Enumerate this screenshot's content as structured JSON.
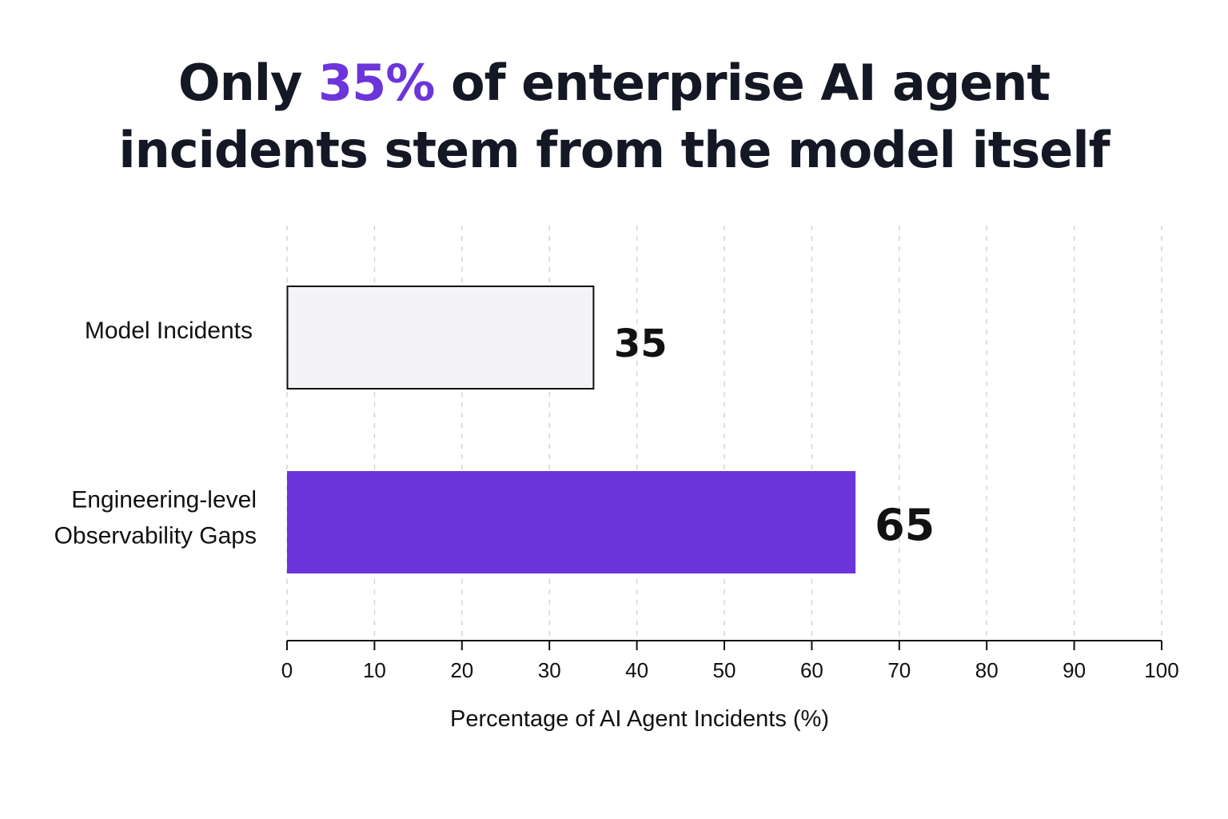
{
  "title": {
    "before": "Only ",
    "highlight": "35%",
    "after_line1": " of enterprise AI agent",
    "line2": "incidents stem from the model itself",
    "highlight_color": "#6c35da"
  },
  "chart_data": {
    "type": "bar",
    "orientation": "horizontal",
    "categories": [
      "Model Incidents",
      "Engineering-level Observability Gaps"
    ],
    "category_lines": [
      [
        "Model Incidents"
      ],
      [
        "Engineering-level",
        "Observability Gaps"
      ]
    ],
    "values": [
      35,
      65
    ],
    "value_labels": [
      "35",
      "65"
    ],
    "bar_colors": [
      "#f4f4f6",
      "#6c35da"
    ],
    "bar_outline": [
      "#111111",
      "none"
    ],
    "xlabel": "Percentage of AI Agent Incidents (%)",
    "ylabel": "",
    "xlim": [
      0,
      100
    ],
    "xticks": [
      0,
      10,
      20,
      30,
      40,
      50,
      60,
      70,
      80,
      90,
      100
    ],
    "xtick_labels": [
      "0",
      "10",
      "20",
      "30",
      "40",
      "50",
      "60",
      "70",
      "80",
      "90",
      "100"
    ],
    "grid": "vertical dashed",
    "legend": "none"
  }
}
